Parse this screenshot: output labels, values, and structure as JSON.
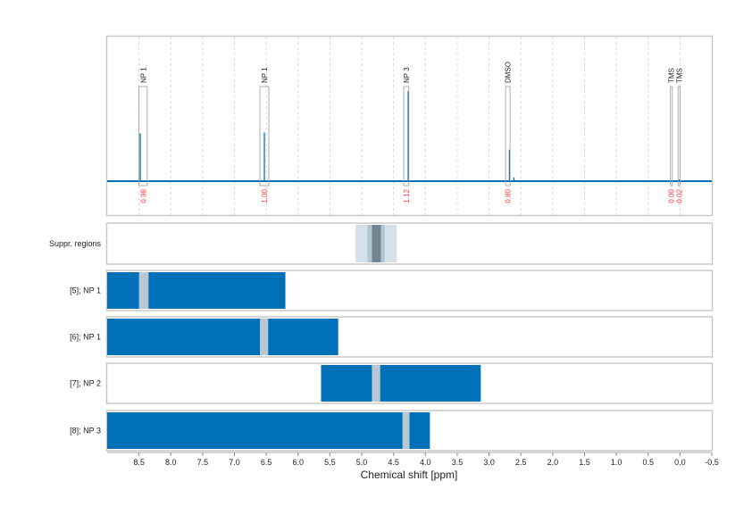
{
  "chart_data": {
    "type": "line",
    "xlabel": "Chemical shift [ppm]",
    "xlim": [
      9.0,
      -0.5
    ],
    "x_reversed": true,
    "x_ticks": [
      8.5,
      8.0,
      7.5,
      7.0,
      6.5,
      6.0,
      5.5,
      5.0,
      4.5,
      4.0,
      3.5,
      3.0,
      2.5,
      2.0,
      1.5,
      1.0,
      0.5,
      0.0,
      -0.5
    ],
    "x_tick_labels": [
      "8.5",
      "8.0",
      "7.5",
      "7.0",
      "6.5",
      "6.0",
      "5.5",
      "5.0",
      "4.5",
      "4.0",
      "3.5",
      "3.0",
      "2.5",
      "2.0",
      "1.5",
      "1.0",
      "0.5",
      "0.0",
      "-0.5"
    ],
    "grid": "vertical dashed",
    "colors": {
      "spectrum": "#0070b8",
      "bar": "#0070b8",
      "gap": "#b8c8d2",
      "integral": "#ff3333",
      "box": "#999999"
    },
    "spectrum": {
      "baseline": 0,
      "peaks": [
        {
          "ppm": 8.48,
          "intensity": 0.53
        },
        {
          "ppm": 6.53,
          "intensity": 0.54
        },
        {
          "ppm": 4.27,
          "intensity": 1.0
        },
        {
          "ppm": 2.68,
          "intensity": 0.35
        },
        {
          "ppm": 2.61,
          "intensity": 0.04
        },
        {
          "ppm": 0.01,
          "intensity": 0.02
        }
      ]
    },
    "annotations": [
      {
        "label": "NP 1",
        "from": 8.5,
        "to": 8.37,
        "integral": "0.98"
      },
      {
        "label": "NP 1",
        "from": 6.6,
        "to": 6.46,
        "integral": "1.00"
      },
      {
        "label": "NP 3",
        "from": 4.34,
        "to": 4.26,
        "integral": "1.12"
      },
      {
        "label": "DMSO",
        "from": 2.74,
        "to": 2.67,
        "integral": "0.80"
      },
      {
        "label": "TMS",
        "from": 0.15,
        "to": 0.12,
        "integral": "0.00"
      },
      {
        "label": "TMS",
        "from": 0.03,
        "to": 0.0,
        "integral": "0.02"
      }
    ],
    "suppression": {
      "label": "Suppr. regions",
      "regions": [
        {
          "from": 5.1,
          "to": 4.45,
          "level": "light"
        },
        {
          "from": 4.91,
          "to": 4.64,
          "level": "medium"
        },
        {
          "from": 4.84,
          "to": 4.7,
          "level": "dark"
        }
      ]
    },
    "rows": [
      {
        "label": "[5]; NP 1",
        "from": 9.0,
        "to": 6.2,
        "gap": [
          8.5,
          8.35
        ]
      },
      {
        "label": "[6]; NP 1",
        "from": 9.0,
        "to": 5.37,
        "gap": [
          6.6,
          6.47
        ]
      },
      {
        "label": "[7]; NP 2",
        "from": 5.64,
        "to": 3.13,
        "gap": [
          4.84,
          4.71
        ]
      },
      {
        "label": "[8]; NP 3",
        "from": 9.0,
        "to": 3.93,
        "gap": [
          4.36,
          4.25
        ]
      }
    ]
  }
}
